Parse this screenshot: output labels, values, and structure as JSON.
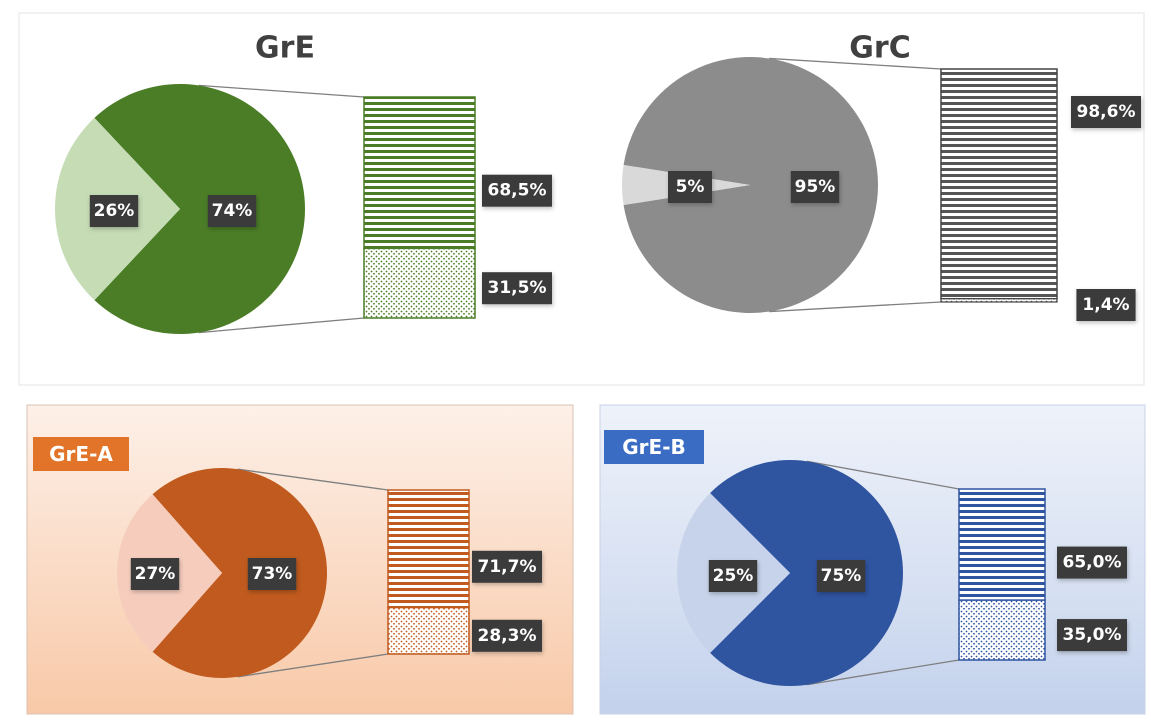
{
  "colors": {
    "green": "#4a7d26",
    "green_light": "#c5dcb5",
    "gray": "#8c8c8c",
    "gray_light": "#d9d9d9",
    "orange": "#c05a1e",
    "orange_light": "#f6cdbd",
    "blue": "#2f54a0",
    "blue_light": "#c7d3ea",
    "label_bg": "#3b3b3b",
    "label_text": "#ffffff"
  },
  "chart_data": [
    {
      "type": "pie",
      "title": "GrE",
      "slices": [
        {
          "label": "74%",
          "value": 74
        },
        {
          "label": "26%",
          "value": 26
        }
      ],
      "breakdown": {
        "type": "bar",
        "segments": [
          {
            "label": "68,5%",
            "value": 68.5,
            "pattern": "horizontal-lines"
          },
          {
            "label": "31,5%",
            "value": 31.5,
            "pattern": "dots"
          }
        ]
      }
    },
    {
      "type": "pie",
      "title": "GrC",
      "slices": [
        {
          "label": "95%",
          "value": 95
        },
        {
          "label": "5%",
          "value": 5
        }
      ],
      "breakdown": {
        "type": "bar",
        "segments": [
          {
            "label": "98,6%",
            "value": 98.6,
            "pattern": "horizontal-lines"
          },
          {
            "label": "1,4%",
            "value": 1.4,
            "pattern": "dots"
          }
        ]
      }
    },
    {
      "type": "pie",
      "title": "GrE-A",
      "slices": [
        {
          "label": "73%",
          "value": 73
        },
        {
          "label": "27%",
          "value": 27
        }
      ],
      "breakdown": {
        "type": "bar",
        "segments": [
          {
            "label": "71,7%",
            "value": 71.7,
            "pattern": "horizontal-lines"
          },
          {
            "label": "28,3%",
            "value": 28.3,
            "pattern": "dots"
          }
        ]
      }
    },
    {
      "type": "pie",
      "title": "GrE-B",
      "slices": [
        {
          "label": "75%",
          "value": 75
        },
        {
          "label": "25%",
          "value": 25
        }
      ],
      "breakdown": {
        "type": "bar",
        "segments": [
          {
            "label": "65,0%",
            "value": 65.0,
            "pattern": "horizontal-lines"
          },
          {
            "label": "35,0%",
            "value": 35.0,
            "pattern": "dots"
          }
        ]
      }
    }
  ]
}
